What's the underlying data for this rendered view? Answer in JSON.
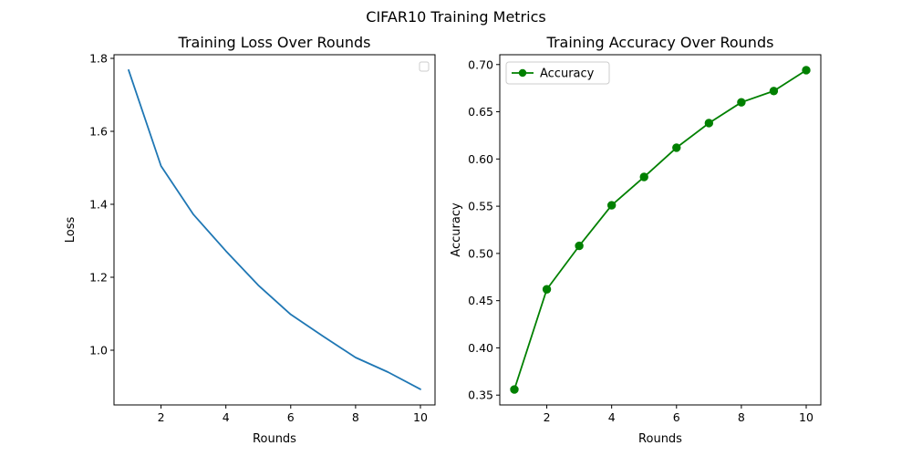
{
  "figure": {
    "suptitle": "CIFAR10 Training Metrics"
  },
  "chart_data": [
    {
      "type": "line",
      "title": "Training Loss Over Rounds",
      "xlabel": "Rounds",
      "ylabel": "Loss",
      "xlim": [
        0.55,
        10.45
      ],
      "ylim": [
        0.85,
        1.81
      ],
      "xticks": [
        2,
        4,
        6,
        8,
        10
      ],
      "yticks": [
        1.0,
        1.2,
        1.4,
        1.6,
        1.8
      ],
      "ytick_decimals": 1,
      "grid": false,
      "legend": {
        "placement": "upper right",
        "entries": []
      },
      "series": [
        {
          "color": "#1f77b4",
          "marker": "none",
          "x": [
            1,
            2,
            3,
            4,
            5,
            6,
            7,
            8,
            9,
            10
          ],
          "y": [
            1.768,
            1.505,
            1.372,
            1.272,
            1.178,
            1.098,
            1.038,
            0.98,
            0.94,
            0.893
          ]
        }
      ]
    },
    {
      "type": "line",
      "title": "Training Accuracy Over Rounds",
      "xlabel": "Rounds",
      "ylabel": "Accuracy",
      "xlim": [
        0.55,
        10.45
      ],
      "ylim": [
        0.3396,
        0.7104
      ],
      "xticks": [
        2,
        4,
        6,
        8,
        10
      ],
      "yticks": [
        0.35,
        0.4,
        0.45,
        0.5,
        0.55,
        0.6,
        0.65,
        0.7
      ],
      "ytick_decimals": 2,
      "grid": false,
      "legend": {
        "placement": "upper left",
        "entries": [
          "Accuracy"
        ]
      },
      "series": [
        {
          "name": "Accuracy",
          "color": "#008000",
          "marker": "circle",
          "x": [
            1,
            2,
            3,
            4,
            5,
            6,
            7,
            8,
            9,
            10
          ],
          "y": [
            0.356,
            0.462,
            0.508,
            0.551,
            0.581,
            0.612,
            0.638,
            0.66,
            0.672,
            0.694
          ]
        }
      ]
    }
  ]
}
